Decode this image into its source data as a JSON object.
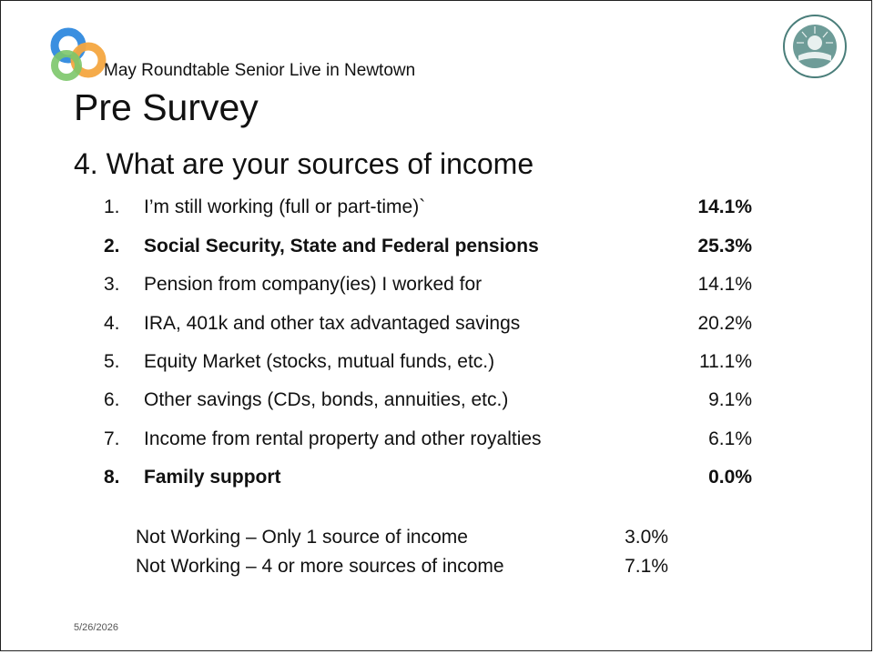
{
  "header": {
    "subtitle": "May Roundtable Senior Live in Newtown",
    "title": "Pre Survey"
  },
  "question": "4. What are your sources of income",
  "items": [
    {
      "num": "1.",
      "label": "I’m still working (full or part-time)`",
      "pct": "14.1%"
    },
    {
      "num": "2.",
      "label": "Social Security, State and Federal pensions",
      "pct": "25.3%"
    },
    {
      "num": "3.",
      "label": "Pension from company(ies) I worked for",
      "pct": "14.1%"
    },
    {
      "num": "4.",
      "label": "IRA, 401k and other tax advantaged savings",
      "pct": "20.2%"
    },
    {
      "num": "5.",
      "label": "Equity Market (stocks, mutual funds, etc.)",
      "pct": "11.1%"
    },
    {
      "num": "6.",
      "label": "Other savings (CDs, bonds, annuities, etc.)",
      "pct": "9.1%"
    },
    {
      "num": "7.",
      "label": "Income from rental property and other royalties",
      "pct": "6.1%"
    },
    {
      "num": "8.",
      "label": "Family support",
      "pct": "0.0%"
    }
  ],
  "summary": [
    {
      "label": "Not Working – Only 1 source of income",
      "pct": "3.0%"
    },
    {
      "label": "Not Working – 4 or more sources of income",
      "pct": "7.1%"
    }
  ],
  "footer": {
    "date": "5/26/2026"
  },
  "colors": {
    "logo_blue": "#3a8fe0",
    "logo_orange": "#f4a640",
    "logo_green": "#7cc66a",
    "seal": "#4a7e7a"
  }
}
